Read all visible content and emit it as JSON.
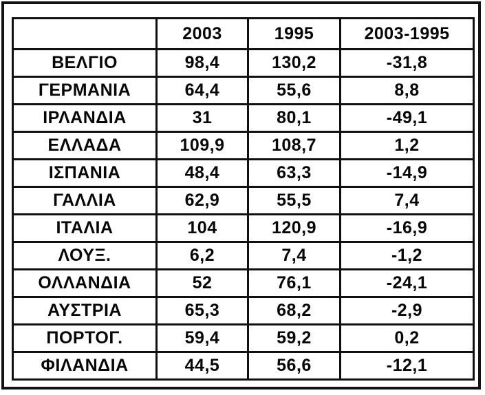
{
  "table": {
    "columns": [
      "",
      "2003",
      "1995",
      "2003-1995"
    ],
    "rows": [
      [
        "ΒΕΛΓΙΟ",
        "98,4",
        "130,2",
        "-31,8"
      ],
      [
        "ΓΕΡΜΑΝΙΑ",
        "64,4",
        "55,6",
        "8,8"
      ],
      [
        "ΙΡΛΑΝΔΙΑ",
        "31",
        "80,1",
        "-49,1"
      ],
      [
        "ΕΛΛΑΔΑ",
        "109,9",
        "108,7",
        "1,2"
      ],
      [
        "ΙΣΠΑΝΙΑ",
        "48,4",
        "63,3",
        "-14,9"
      ],
      [
        "ΓΑΛΛΙΑ",
        "62,9",
        "55,5",
        "7,4"
      ],
      [
        "ΙΤΑΛΙΑ",
        "104",
        "120,9",
        "-16,9"
      ],
      [
        "ΛΟΥΞ.",
        "6,2",
        "7,4",
        "-1,2"
      ],
      [
        "ΟΛΛΑΝΔΙΑ",
        "52",
        "76,1",
        "-24,1"
      ],
      [
        "ΑΥΣΤΡΙΑ",
        "65,3",
        "68,2",
        "-2,9"
      ],
      [
        "ΠΟΡΤΟΓ.",
        "59,4",
        "59,2",
        "0,2"
      ],
      [
        "ΦΙΛΑΝΔΙΑ",
        "44,5",
        "56,6",
        "-12,1"
      ]
    ],
    "border_color": "#101010",
    "text_color": "#070707",
    "background_color": "#ffffff"
  },
  "chart_data": {
    "type": "table",
    "title": "",
    "categories": [
      "ΒΕΛΓΙΟ",
      "ΓΕΡΜΑΝΙΑ",
      "ΙΡΛΑΝΔΙΑ",
      "ΕΛΛΑΔΑ",
      "ΙΣΠΑΝΙΑ",
      "ΓΑΛΛΙΑ",
      "ΙΤΑΛΙΑ",
      "ΛΟΥΞ.",
      "ΟΛΛΑΝΔΙΑ",
      "ΑΥΣΤΡΙΑ",
      "ΠΟΡΤΟΓ.",
      "ΦΙΛΑΝΔΙΑ"
    ],
    "series": [
      {
        "name": "2003",
        "values": [
          98.4,
          64.4,
          31,
          109.9,
          48.4,
          62.9,
          104,
          6.2,
          52,
          65.3,
          59.4,
          44.5
        ]
      },
      {
        "name": "1995",
        "values": [
          130.2,
          55.6,
          80.1,
          108.7,
          63.3,
          55.5,
          120.9,
          7.4,
          76.1,
          68.2,
          59.2,
          56.6
        ]
      },
      {
        "name": "2003-1995",
        "values": [
          -31.8,
          8.8,
          -49.1,
          1.2,
          -14.9,
          7.4,
          -16.9,
          -1.2,
          -24.1,
          -2.9,
          0.2,
          -12.1
        ]
      }
    ],
    "decimal_separator": ","
  }
}
